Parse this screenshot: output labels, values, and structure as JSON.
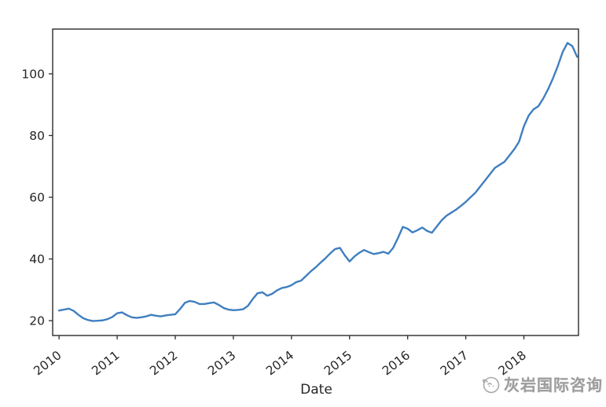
{
  "figure": {
    "background": "#ffffff",
    "axis_color": "#2b2b2b",
    "line_color": "#3f7fbf",
    "tick_label_color": "#262626",
    "watermark": {
      "text": "灰岩国际咨询",
      "color": "#9d9d9d"
    }
  },
  "chart_data": {
    "type": "line",
    "title": "",
    "xlabel": "Date",
    "ylabel": "",
    "grid": false,
    "legend_position": "none",
    "x_start": "2010-01",
    "frequency": "monthly",
    "x_tick_labels": [
      "2010",
      "2011",
      "2012",
      "2013",
      "2014",
      "2015",
      "2016",
      "2017",
      "2018"
    ],
    "x_tick_rotation_deg": -38,
    "y_ticks": [
      20,
      40,
      60,
      80,
      100
    ],
    "xlim_yearfrac": [
      2009.89,
      2018.94
    ],
    "ylim": [
      15.2,
      114.5
    ],
    "series": [
      {
        "name": "value",
        "values": [
          23.3,
          23.6,
          23.9,
          23.2,
          21.9,
          20.8,
          20.2,
          19.9,
          20.0,
          20.1,
          20.5,
          21.2,
          22.4,
          22.7,
          21.8,
          21.1,
          20.9,
          21.1,
          21.4,
          21.9,
          21.6,
          21.4,
          21.7,
          21.9,
          22.1,
          23.8,
          25.8,
          26.4,
          26.1,
          25.4,
          25.4,
          25.7,
          25.9,
          25.1,
          24.1,
          23.6,
          23.4,
          23.5,
          23.7,
          24.8,
          27.0,
          28.9,
          29.2,
          28.1,
          28.7,
          29.8,
          30.6,
          30.9,
          31.5,
          32.5,
          33.0,
          34.5,
          36.0,
          37.3,
          38.8,
          40.2,
          41.8,
          43.2,
          43.6,
          41.2,
          39.2,
          40.8,
          42.0,
          42.9,
          42.2,
          41.6,
          41.9,
          42.3,
          41.7,
          43.6,
          46.8,
          50.4,
          49.8,
          48.6,
          49.3,
          50.2,
          49.1,
          48.5,
          50.5,
          52.5,
          54.0,
          55.0,
          56.0,
          57.2,
          58.5,
          60.0,
          61.5,
          63.5,
          65.5,
          67.5,
          69.5,
          70.5,
          71.5,
          73.5,
          75.5,
          78.0,
          83.0,
          86.5,
          88.5,
          89.5,
          92.0,
          95.0,
          98.5,
          102.5,
          107.0,
          110.0,
          109.0,
          105.5
        ]
      }
    ]
  }
}
